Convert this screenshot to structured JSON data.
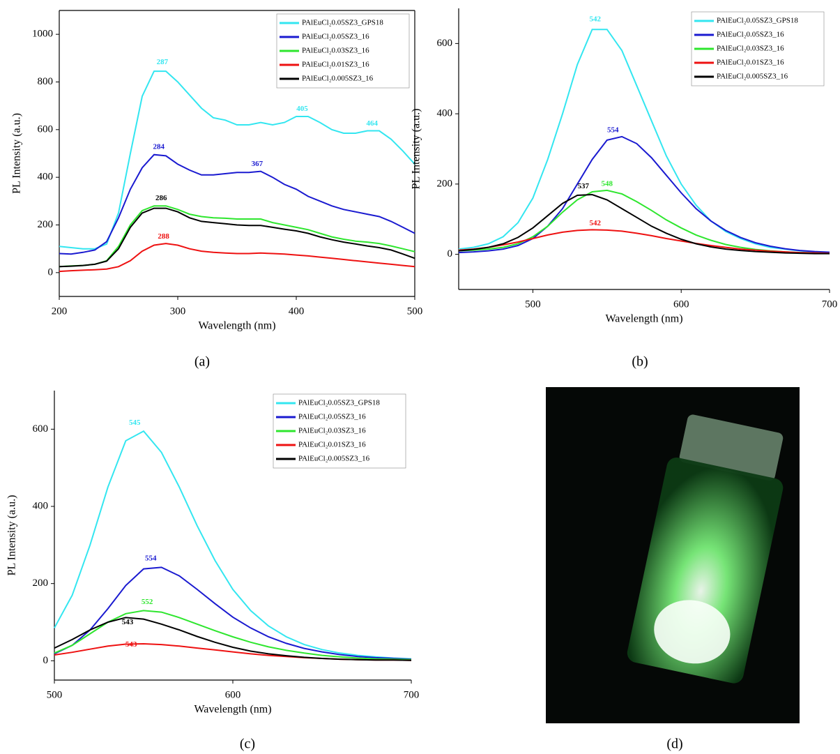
{
  "chart_data": [
    {
      "type": "line",
      "caption": "(a)",
      "x_label": "Wavelength (nm)",
      "y_label": "PL Intensity (a.u.)",
      "xlim": [
        200,
        500
      ],
      "xticks": [
        200,
        300,
        400,
        500
      ],
      "ylim": [
        -100,
        1100
      ],
      "yticks": [
        0,
        200,
        400,
        600,
        800,
        1000
      ],
      "box": true,
      "legend": "upper right",
      "x": [
        200,
        210,
        220,
        230,
        240,
        250,
        260,
        270,
        280,
        290,
        300,
        310,
        320,
        330,
        340,
        350,
        360,
        370,
        380,
        390,
        400,
        410,
        420,
        430,
        440,
        450,
        460,
        470,
        480,
        490,
        500
      ],
      "series": [
        {
          "name": "PAlEuCl₂0.05SZ3_GPS18",
          "color": "#33e6f0",
          "values": [
            110,
            105,
            100,
            100,
            120,
            250,
            500,
            740,
            845,
            845,
            800,
            745,
            690,
            650,
            640,
            620,
            620,
            630,
            620,
            630,
            655,
            655,
            630,
            600,
            585,
            585,
            595,
            595,
            560,
            510,
            455
          ]
        },
        {
          "name": "PAlEuCl₂0.05SZ3_16",
          "color": "#1a1ad0",
          "values": [
            80,
            78,
            85,
            95,
            130,
            230,
            350,
            440,
            495,
            490,
            455,
            430,
            410,
            410,
            415,
            420,
            420,
            425,
            400,
            370,
            350,
            320,
            300,
            280,
            265,
            255,
            245,
            235,
            215,
            190,
            165
          ]
        },
        {
          "name": "PAlEuCl₂0.03SZ3_16",
          "color": "#2ee62e",
          "values": [
            25,
            28,
            30,
            35,
            50,
            110,
            200,
            260,
            280,
            280,
            265,
            245,
            235,
            230,
            228,
            225,
            225,
            225,
            210,
            200,
            190,
            180,
            165,
            150,
            140,
            132,
            128,
            122,
            112,
            100,
            88
          ]
        },
        {
          "name": "PAlEuCl₂0.01SZ3_16",
          "color": "#ee1111",
          "values": [
            5,
            8,
            10,
            12,
            15,
            25,
            50,
            90,
            115,
            122,
            115,
            100,
            90,
            85,
            82,
            80,
            80,
            82,
            80,
            78,
            74,
            70,
            65,
            60,
            55,
            50,
            45,
            40,
            35,
            30,
            25
          ]
        },
        {
          "name": "PAlEuCl₂0.005SZ3_16",
          "color": "#000000",
          "values": [
            25,
            27,
            30,
            35,
            48,
            100,
            190,
            250,
            270,
            270,
            255,
            230,
            215,
            210,
            205,
            200,
            198,
            198,
            190,
            182,
            175,
            165,
            150,
            138,
            128,
            120,
            112,
            105,
            95,
            78,
            60
          ]
        }
      ],
      "annotations": [
        {
          "text": "287",
          "x": 287,
          "y": 855,
          "series": 0
        },
        {
          "text": "405",
          "x": 405,
          "y": 660,
          "series": 0
        },
        {
          "text": "464",
          "x": 464,
          "y": 598,
          "series": 0
        },
        {
          "text": "284",
          "x": 284,
          "y": 500,
          "series": 1
        },
        {
          "text": "367",
          "x": 367,
          "y": 428,
          "series": 1
        },
        {
          "text": "286",
          "x": 286,
          "y": 285,
          "series": 4
        },
        {
          "text": "288",
          "x": 288,
          "y": 124,
          "series": 3
        }
      ]
    },
    {
      "type": "line",
      "caption": "(b)",
      "x_label": "Wavelength (nm)",
      "y_label": "PL Intensity (a.u.)",
      "xlim": [
        450,
        700
      ],
      "xticks": [
        500,
        600,
        700
      ],
      "ylim": [
        -100,
        700
      ],
      "yticks": [
        0,
        200,
        400,
        600
      ],
      "box": false,
      "legend": "upper right",
      "x": [
        450,
        460,
        470,
        480,
        490,
        500,
        510,
        520,
        530,
        540,
        550,
        560,
        570,
        580,
        590,
        600,
        610,
        620,
        630,
        640,
        650,
        660,
        670,
        680,
        690,
        700
      ],
      "series": [
        {
          "name": "PAlEuCl₂0.05SZ3_GPS18",
          "color": "#33e6f0",
          "values": [
            15,
            20,
            30,
            50,
            90,
            160,
            270,
            400,
            540,
            640,
            640,
            580,
            480,
            380,
            280,
            200,
            140,
            95,
            65,
            45,
            30,
            20,
            15,
            10,
            7,
            5
          ]
        },
        {
          "name": "PAlEuCl₂0.05SZ3_16",
          "color": "#1a1ad0",
          "values": [
            5,
            7,
            10,
            15,
            25,
            45,
            80,
            130,
            200,
            270,
            325,
            335,
            315,
            275,
            225,
            175,
            130,
            95,
            68,
            48,
            33,
            23,
            16,
            11,
            8,
            6
          ]
        },
        {
          "name": "PAlEuCl₂0.03SZ3_16",
          "color": "#2ee62e",
          "values": [
            10,
            12,
            15,
            20,
            30,
            50,
            80,
            120,
            155,
            178,
            182,
            172,
            150,
            125,
            98,
            75,
            55,
            40,
            28,
            20,
            14,
            10,
            7,
            5,
            4,
            3
          ]
        },
        {
          "name": "PAlEuCl₂0.01SZ3_16",
          "color": "#ee1111",
          "values": [
            12,
            15,
            20,
            27,
            35,
            45,
            55,
            63,
            68,
            70,
            69,
            66,
            60,
            53,
            45,
            38,
            31,
            25,
            20,
            15,
            12,
            9,
            7,
            5,
            4,
            3
          ]
        },
        {
          "name": "PAlEuCl₂0.005SZ3_16",
          "color": "#000000",
          "values": [
            10,
            14,
            20,
            30,
            48,
            75,
            110,
            145,
            168,
            170,
            155,
            130,
            105,
            80,
            60,
            43,
            30,
            21,
            15,
            11,
            8,
            6,
            4,
            3,
            2,
            2
          ]
        }
      ],
      "annotations": [
        {
          "text": "542",
          "x": 542,
          "y": 650,
          "series": 0
        },
        {
          "text": "554",
          "x": 554,
          "y": 335,
          "series": 1
        },
        {
          "text": "548",
          "x": 550,
          "y": 182,
          "series": 2
        },
        {
          "text": "537",
          "x": 534,
          "y": 175,
          "series": 4
        },
        {
          "text": "542",
          "x": 542,
          "y": 70,
          "series": 3
        }
      ]
    },
    {
      "type": "line",
      "caption": "(c)",
      "x_label": "Wavelength (nm)",
      "y_label": "PL Intensity (a.u.)",
      "xlim": [
        500,
        700
      ],
      "xticks": [
        500,
        600,
        700
      ],
      "ylim": [
        -50,
        700
      ],
      "yticks": [
        0,
        200,
        400,
        600
      ],
      "box": false,
      "legend": "upper right",
      "x": [
        500,
        510,
        520,
        530,
        540,
        550,
        560,
        570,
        580,
        590,
        600,
        610,
        620,
        630,
        640,
        650,
        660,
        670,
        680,
        690,
        700
      ],
      "series": [
        {
          "name": "PAlEuCl₂0.05SZ3_GPS18",
          "color": "#33e6f0",
          "values": [
            85,
            170,
            300,
            450,
            570,
            595,
            540,
            450,
            350,
            260,
            185,
            130,
            90,
            62,
            42,
            29,
            20,
            14,
            10,
            7,
            5
          ]
        },
        {
          "name": "PAlEuCl₂0.05SZ3_16",
          "color": "#1a1ad0",
          "values": [
            18,
            40,
            80,
            135,
            195,
            238,
            242,
            220,
            185,
            148,
            113,
            85,
            62,
            45,
            32,
            23,
            16,
            11,
            8,
            6,
            4
          ]
        },
        {
          "name": "PAlEuCl₂0.03SZ3_16",
          "color": "#2ee62e",
          "values": [
            20,
            40,
            70,
            100,
            122,
            130,
            126,
            112,
            95,
            78,
            62,
            48,
            36,
            27,
            20,
            14,
            10,
            7,
            5,
            4,
            3
          ]
        },
        {
          "name": "PAlEuCl₂0.01SZ3_16",
          "color": "#ee1111",
          "values": [
            15,
            22,
            30,
            38,
            43,
            44,
            42,
            38,
            33,
            28,
            23,
            18,
            14,
            11,
            8,
            6,
            4,
            3,
            2,
            2,
            1
          ]
        },
        {
          "name": "PAlEuCl₂0.005SZ3_16",
          "color": "#000000",
          "values": [
            33,
            55,
            80,
            100,
            112,
            108,
            95,
            80,
            63,
            48,
            35,
            25,
            18,
            13,
            9,
            6,
            4,
            3,
            2,
            2,
            1
          ]
        }
      ],
      "annotations": [
        {
          "text": "545",
          "x": 545,
          "y": 600,
          "series": 0
        },
        {
          "text": "554",
          "x": 554,
          "y": 248,
          "series": 1
        },
        {
          "text": "552",
          "x": 552,
          "y": 135,
          "series": 2
        },
        {
          "text": "543",
          "x": 541,
          "y": 83,
          "series": 4
        },
        {
          "text": "543",
          "x": 543,
          "y": 25,
          "series": 3
        }
      ]
    }
  ],
  "image_caption": "(d)"
}
